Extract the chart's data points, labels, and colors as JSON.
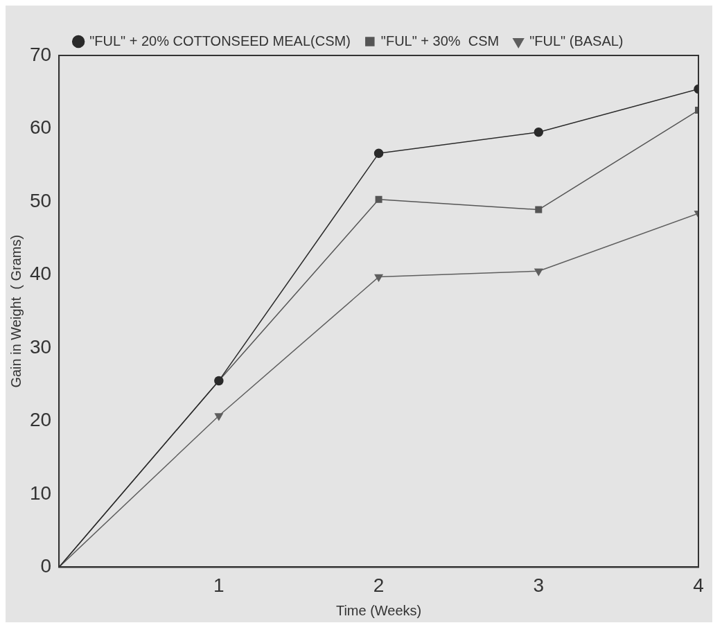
{
  "chart_data": {
    "type": "line",
    "xlabel": "Time (Weeks)",
    "ylabel": "Gain in Weight  ( Grams)",
    "xlim": [
      0,
      4
    ],
    "xticks": [
      1,
      2,
      3,
      4
    ],
    "ylim": [
      0,
      70
    ],
    "yticks": [
      0,
      10,
      20,
      30,
      40,
      50,
      60,
      70
    ],
    "grid": false,
    "legend": "top left",
    "line_style": "solid",
    "x": [
      0,
      1,
      2,
      3,
      4
    ],
    "series": [
      {
        "name": "\"FUL\" + 20% COTTONSEED MEAL(CSM)",
        "color": "#2a2a2a",
        "marker": "circle",
        "values": [
          0,
          25.5,
          56.6,
          59.5,
          65.4
        ]
      },
      {
        "name": "\"FUL\" + 30%  CSM",
        "color": "#555555",
        "marker": "square",
        "values": [
          0,
          25.5,
          50.3,
          48.9,
          62.5
        ]
      },
      {
        "name": "\"FUL\" (BASAL)",
        "color": "#5e5e5e",
        "marker": "triangle",
        "values": [
          0,
          20.7,
          39.7,
          40.5,
          48.4
        ]
      }
    ]
  }
}
